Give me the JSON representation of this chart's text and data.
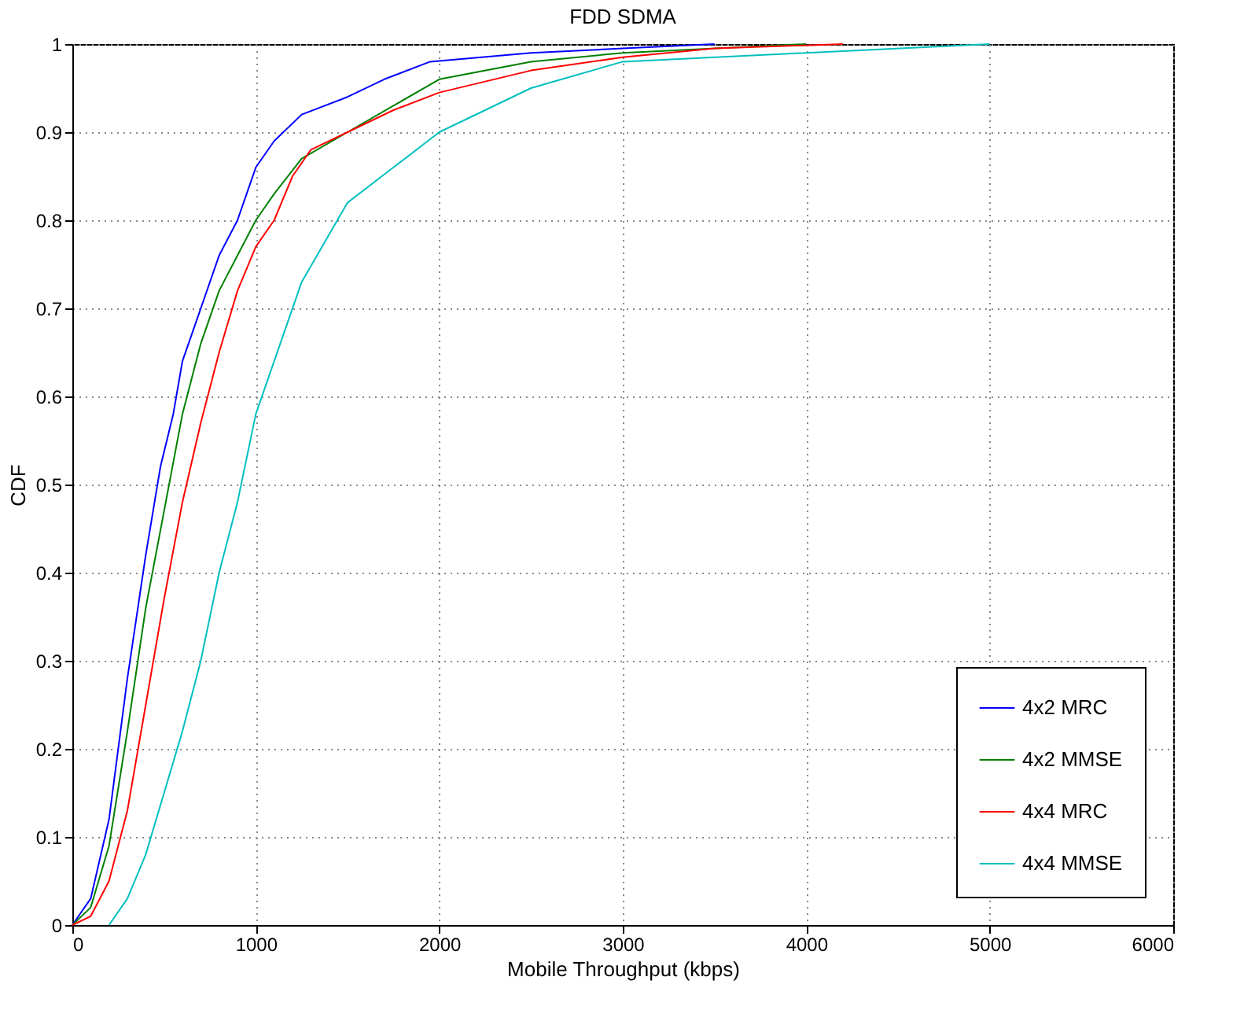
{
  "chart_data": {
    "type": "line",
    "title": "FDD SDMA",
    "xlabel": "Mobile Throughput (kbps)",
    "ylabel": "CDF",
    "xlim": [
      0,
      6000
    ],
    "xticks": [
      0,
      1000,
      2000,
      3000,
      4000,
      5000,
      6000
    ],
    "ylim": [
      0,
      1
    ],
    "yticks": [
      0,
      0.1,
      0.2,
      0.3,
      0.4,
      0.5,
      0.6,
      0.7,
      0.8,
      0.9,
      1
    ],
    "grid": true,
    "legend": "bottom right",
    "line_style": "solid",
    "series": [
      {
        "name": "4x2 MRC",
        "color": "#0000ff",
        "x": [
          0,
          100,
          200,
          300,
          400,
          480,
          550,
          600,
          650,
          700,
          800,
          900,
          1000,
          1100,
          1250,
          1500,
          1700,
          1950,
          2500,
          3000,
          3500
        ],
        "values": [
          0,
          0.03,
          0.12,
          0.28,
          0.42,
          0.52,
          0.58,
          0.64,
          0.67,
          0.7,
          0.76,
          0.8,
          0.86,
          0.89,
          0.92,
          0.94,
          0.96,
          0.98,
          0.99,
          0.995,
          1
        ]
      },
      {
        "name": "4x2 MMSE",
        "color": "#008000",
        "x": [
          0,
          100,
          200,
          300,
          400,
          500,
          600,
          700,
          800,
          900,
          1000,
          1100,
          1250,
          1500,
          1750,
          2000,
          2500,
          3000,
          4000
        ],
        "values": [
          0,
          0.02,
          0.09,
          0.22,
          0.36,
          0.47,
          0.58,
          0.66,
          0.72,
          0.76,
          0.8,
          0.83,
          0.87,
          0.9,
          0.93,
          0.96,
          0.98,
          0.99,
          1
        ]
      },
      {
        "name": "4x4 MRC",
        "color": "#ff0000",
        "x": [
          0,
          100,
          200,
          300,
          400,
          500,
          600,
          700,
          800,
          900,
          1000,
          1100,
          1200,
          1300,
          1500,
          1750,
          2000,
          2500,
          3000,
          3500,
          4200
        ],
        "values": [
          0,
          0.01,
          0.05,
          0.13,
          0.25,
          0.37,
          0.48,
          0.57,
          0.65,
          0.72,
          0.77,
          0.8,
          0.85,
          0.88,
          0.9,
          0.925,
          0.945,
          0.97,
          0.985,
          0.995,
          1
        ]
      },
      {
        "name": "4x4 MMSE",
        "color": "#00bfbf",
        "x": [
          200,
          300,
          400,
          500,
          600,
          700,
          800,
          900,
          1000,
          1100,
          1250,
          1500,
          1750,
          2000,
          2500,
          3000,
          4000,
          5000
        ],
        "values": [
          0,
          0.03,
          0.08,
          0.15,
          0.22,
          0.3,
          0.4,
          0.48,
          0.58,
          0.64,
          0.73,
          0.82,
          0.86,
          0.9,
          0.95,
          0.98,
          0.99,
          1
        ]
      }
    ]
  }
}
